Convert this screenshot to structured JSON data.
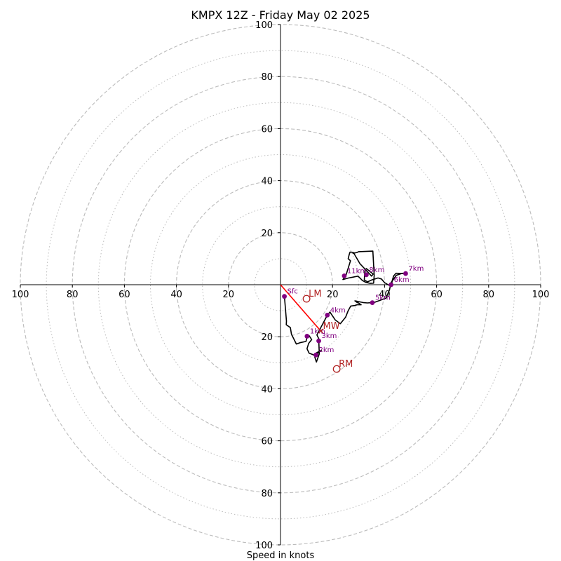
{
  "chart_data": {
    "type": "line",
    "title": "KMPX 12Z - Friday May 02 2025",
    "xlabel": "Speed in knots",
    "ylabel": "",
    "xlim": [
      -100,
      100
    ],
    "ylim": [
      -100,
      100
    ],
    "ring_major": [
      20,
      40,
      60,
      80,
      100
    ],
    "ring_minor": [
      10,
      30,
      50,
      70,
      90
    ],
    "tick_labels": {
      "x_left": [
        "100",
        "80",
        "60",
        "40",
        "20"
      ],
      "x_right": [
        "20",
        "40",
        "60",
        "80",
        "100"
      ],
      "y_top": [
        "100",
        "80",
        "60",
        "40",
        "20"
      ],
      "y_bottom": [
        "20",
        "40",
        "60",
        "80",
        "100"
      ]
    },
    "hodograph": {
      "u": [
        1.5,
        2.3,
        2.2,
        3.8,
        4.2,
        6.1,
        7.5,
        9.8,
        10.2,
        11.0,
        12.0,
        10.8,
        10.2,
        11.0,
        12.5,
        13.6,
        15.7,
        13.8,
        13.2,
        13.8,
        14.9,
        14.7,
        14.0,
        16.0,
        18.0,
        19.0,
        21.0,
        23.0,
        25.0,
        26.0,
        27.0,
        28.5,
        29.5,
        31.0,
        30.0,
        29.4,
        29.0,
        28.6,
        32.0,
        33.4,
        35.0,
        35.5,
        40.5,
        41.9,
        42.5,
        44.5,
        46.8,
        48.1,
        44.4,
        43.5,
        43.0,
        42.7,
        41.5,
        40.0,
        38.8,
        37.5,
        35.0,
        33.5,
        32.2,
        32.4,
        33.0,
        35.6,
        35.0,
        30.5,
        28.0,
        27.2,
        26.7,
        26.4,
        26.0,
        26.9,
        25.1,
        24.0,
        26.2,
        27.9,
        29.8,
        31.5,
        32.8,
        34.5,
        35.8,
        36.0,
        35.5,
        30.0,
        29.8,
        29.4,
        29.0,
        28.4,
        27.7
      ],
      "v": [
        -4.5,
        -14.0,
        -15.4,
        -16.5,
        -19.0,
        -22.8,
        -22.3,
        -21.8,
        -20.0,
        -19.6,
        -21.1,
        -22.6,
        -24.6,
        -26.3,
        -26.9,
        -27.0,
        -25.2,
        -26.2,
        -27.9,
        -29.7,
        -26.6,
        -20.7,
        -19.3,
        -15.5,
        -11.7,
        -10.5,
        -13.5,
        -15.0,
        -12.5,
        -10.0,
        -8.2,
        -8.0,
        -7.7,
        -7.7,
        -7.0,
        -6.8,
        -6.5,
        -6.2,
        -6.9,
        -7.0,
        -6.9,
        -7.0,
        -5.2,
        -2.0,
        0.8,
        3.6,
        4.4,
        4.3,
        4.4,
        3.4,
        1.8,
        0.0,
        -0.1,
        0.8,
        2.2,
        2.6,
        1.8,
        1.1,
        1.8,
        5.3,
        6.2,
        4.1,
        3.3,
        8.1,
        12.4,
        12.5,
        12.5,
        11.5,
        10.0,
        9.2,
        3.4,
        2.0,
        2.6,
        2.9,
        3.3,
        1.6,
        0.9,
        0.5,
        0.6,
        3.6,
        12.9,
        12.7,
        12.6,
        12.4,
        12.3,
        12.2,
        12.0
      ]
    },
    "height_markers": [
      {
        "label": "Sfc",
        "u": 1.5,
        "v": -4.5
      },
      {
        "label": "1km",
        "u": 10.2,
        "v": -19.8
      },
      {
        "label": "2km",
        "u": 13.6,
        "v": -27.0
      },
      {
        "label": "3km",
        "u": 14.7,
        "v": -21.6
      },
      {
        "label": "4km",
        "u": 18.0,
        "v": -11.7
      },
      {
        "label": "5km",
        "u": 35.3,
        "v": -6.9
      },
      {
        "label": "6km",
        "u": 42.5,
        "v": 0.0
      },
      {
        "label": "7km",
        "u": 48.1,
        "v": 4.3
      },
      {
        "label": "8km",
        "u": 33.0,
        "v": 3.8
      },
      {
        "label": "11km",
        "u": 24.5,
        "v": 3.4
      }
    ],
    "motion_markers": [
      {
        "label": "LM",
        "u": 10.0,
        "v": -5.4
      },
      {
        "label": "MW",
        "u": 15.5,
        "v": -17.8
      },
      {
        "label": "RM",
        "u": 21.6,
        "v": -32.4
      }
    ],
    "mean_wind_vector": {
      "u": 15.5,
      "v": -17.8
    },
    "colors": {
      "hodograph": "#000000",
      "height_marker": "#800080",
      "motion": "#b22222",
      "mean_wind_vector": "#ff0000",
      "ring": "#bbbbbb",
      "axis": "#000000"
    },
    "grid": true,
    "legend": "none"
  }
}
